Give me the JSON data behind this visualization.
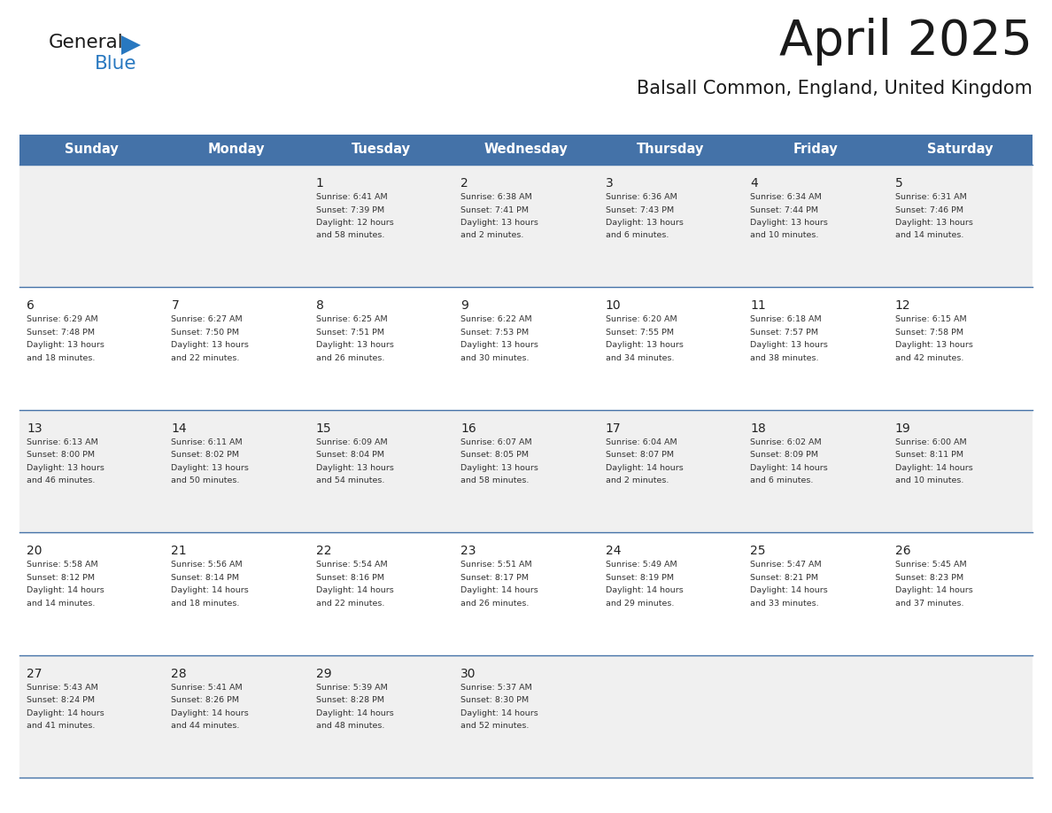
{
  "title": "April 2025",
  "subtitle": "Balsall Common, England, United Kingdom",
  "days_of_week": [
    "Sunday",
    "Monday",
    "Tuesday",
    "Wednesday",
    "Thursday",
    "Friday",
    "Saturday"
  ],
  "header_bg_color": "#4472a8",
  "header_text_color": "#ffffff",
  "cell_bg_row0": "#f0f0f0",
  "cell_bg_row1": "#ffffff",
  "cell_border_color": "#4472a8",
  "day_num_color": "#222222",
  "cell_text_color": "#333333",
  "title_color": "#1a1a1a",
  "subtitle_color": "#1a1a1a",
  "logo_general_color": "#1a1a1a",
  "logo_blue_color": "#2878c0",
  "weeks": [
    [
      {
        "day": null,
        "info": ""
      },
      {
        "day": null,
        "info": ""
      },
      {
        "day": 1,
        "info": "Sunrise: 6:41 AM\nSunset: 7:39 PM\nDaylight: 12 hours\nand 58 minutes."
      },
      {
        "day": 2,
        "info": "Sunrise: 6:38 AM\nSunset: 7:41 PM\nDaylight: 13 hours\nand 2 minutes."
      },
      {
        "day": 3,
        "info": "Sunrise: 6:36 AM\nSunset: 7:43 PM\nDaylight: 13 hours\nand 6 minutes."
      },
      {
        "day": 4,
        "info": "Sunrise: 6:34 AM\nSunset: 7:44 PM\nDaylight: 13 hours\nand 10 minutes."
      },
      {
        "day": 5,
        "info": "Sunrise: 6:31 AM\nSunset: 7:46 PM\nDaylight: 13 hours\nand 14 minutes."
      }
    ],
    [
      {
        "day": 6,
        "info": "Sunrise: 6:29 AM\nSunset: 7:48 PM\nDaylight: 13 hours\nand 18 minutes."
      },
      {
        "day": 7,
        "info": "Sunrise: 6:27 AM\nSunset: 7:50 PM\nDaylight: 13 hours\nand 22 minutes."
      },
      {
        "day": 8,
        "info": "Sunrise: 6:25 AM\nSunset: 7:51 PM\nDaylight: 13 hours\nand 26 minutes."
      },
      {
        "day": 9,
        "info": "Sunrise: 6:22 AM\nSunset: 7:53 PM\nDaylight: 13 hours\nand 30 minutes."
      },
      {
        "day": 10,
        "info": "Sunrise: 6:20 AM\nSunset: 7:55 PM\nDaylight: 13 hours\nand 34 minutes."
      },
      {
        "day": 11,
        "info": "Sunrise: 6:18 AM\nSunset: 7:57 PM\nDaylight: 13 hours\nand 38 minutes."
      },
      {
        "day": 12,
        "info": "Sunrise: 6:15 AM\nSunset: 7:58 PM\nDaylight: 13 hours\nand 42 minutes."
      }
    ],
    [
      {
        "day": 13,
        "info": "Sunrise: 6:13 AM\nSunset: 8:00 PM\nDaylight: 13 hours\nand 46 minutes."
      },
      {
        "day": 14,
        "info": "Sunrise: 6:11 AM\nSunset: 8:02 PM\nDaylight: 13 hours\nand 50 minutes."
      },
      {
        "day": 15,
        "info": "Sunrise: 6:09 AM\nSunset: 8:04 PM\nDaylight: 13 hours\nand 54 minutes."
      },
      {
        "day": 16,
        "info": "Sunrise: 6:07 AM\nSunset: 8:05 PM\nDaylight: 13 hours\nand 58 minutes."
      },
      {
        "day": 17,
        "info": "Sunrise: 6:04 AM\nSunset: 8:07 PM\nDaylight: 14 hours\nand 2 minutes."
      },
      {
        "day": 18,
        "info": "Sunrise: 6:02 AM\nSunset: 8:09 PM\nDaylight: 14 hours\nand 6 minutes."
      },
      {
        "day": 19,
        "info": "Sunrise: 6:00 AM\nSunset: 8:11 PM\nDaylight: 14 hours\nand 10 minutes."
      }
    ],
    [
      {
        "day": 20,
        "info": "Sunrise: 5:58 AM\nSunset: 8:12 PM\nDaylight: 14 hours\nand 14 minutes."
      },
      {
        "day": 21,
        "info": "Sunrise: 5:56 AM\nSunset: 8:14 PM\nDaylight: 14 hours\nand 18 minutes."
      },
      {
        "day": 22,
        "info": "Sunrise: 5:54 AM\nSunset: 8:16 PM\nDaylight: 14 hours\nand 22 minutes."
      },
      {
        "day": 23,
        "info": "Sunrise: 5:51 AM\nSunset: 8:17 PM\nDaylight: 14 hours\nand 26 minutes."
      },
      {
        "day": 24,
        "info": "Sunrise: 5:49 AM\nSunset: 8:19 PM\nDaylight: 14 hours\nand 29 minutes."
      },
      {
        "day": 25,
        "info": "Sunrise: 5:47 AM\nSunset: 8:21 PM\nDaylight: 14 hours\nand 33 minutes."
      },
      {
        "day": 26,
        "info": "Sunrise: 5:45 AM\nSunset: 8:23 PM\nDaylight: 14 hours\nand 37 minutes."
      }
    ],
    [
      {
        "day": 27,
        "info": "Sunrise: 5:43 AM\nSunset: 8:24 PM\nDaylight: 14 hours\nand 41 minutes."
      },
      {
        "day": 28,
        "info": "Sunrise: 5:41 AM\nSunset: 8:26 PM\nDaylight: 14 hours\nand 44 minutes."
      },
      {
        "day": 29,
        "info": "Sunrise: 5:39 AM\nSunset: 8:28 PM\nDaylight: 14 hours\nand 48 minutes."
      },
      {
        "day": 30,
        "info": "Sunrise: 5:37 AM\nSunset: 8:30 PM\nDaylight: 14 hours\nand 52 minutes."
      },
      {
        "day": null,
        "info": ""
      },
      {
        "day": null,
        "info": ""
      },
      {
        "day": null,
        "info": ""
      }
    ]
  ]
}
